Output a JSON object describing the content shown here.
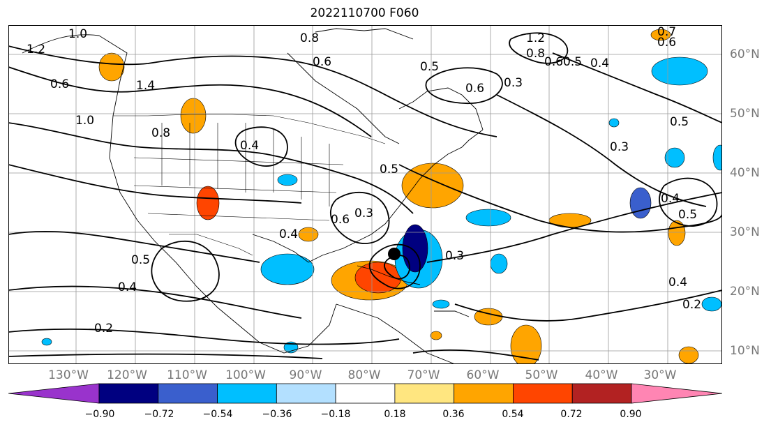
{
  "title": "2022110700 F060",
  "lon_labels": [
    "130°W",
    "120°W",
    "110°W",
    "100°W",
    "90°W",
    "80°W",
    "70°W",
    "60°W",
    "50°W",
    "40°W",
    "30°W"
  ],
  "lat_labels": [
    "60°N",
    "50°N",
    "40°N",
    "30°N",
    "20°N",
    "10°N"
  ],
  "contour_labels": [
    "1.0",
    "1.2",
    "1.4",
    "1.0",
    "0.8",
    "0.8",
    "0.6",
    "0.5",
    "0.6",
    "0.3",
    "1.2",
    "0.8",
    "0.6",
    "0.5",
    "0.4",
    "0.7",
    "0.6",
    "0.5",
    "0.3",
    "0.5",
    "0.4",
    "0.5",
    "0.3",
    "0.4",
    "0.2",
    "0.5",
    "0.4",
    "0.2",
    "0.6",
    "0.4",
    "0.6",
    "0.4",
    "0.3"
  ],
  "colorbar": {
    "ticks": [
      "−0.90",
      "−0.72",
      "−0.54",
      "−0.36",
      "−0.18",
      "0.18",
      "0.36",
      "0.54",
      "0.72",
      "0.90"
    ],
    "colors": [
      "#9933cc",
      "#000080",
      "#3a5fcd",
      "#00bfff",
      "#b3e0ff",
      "#ffffff",
      "#ffe680",
      "#ffa500",
      "#ff4500",
      "#b22222",
      "#ff85b3"
    ]
  }
}
